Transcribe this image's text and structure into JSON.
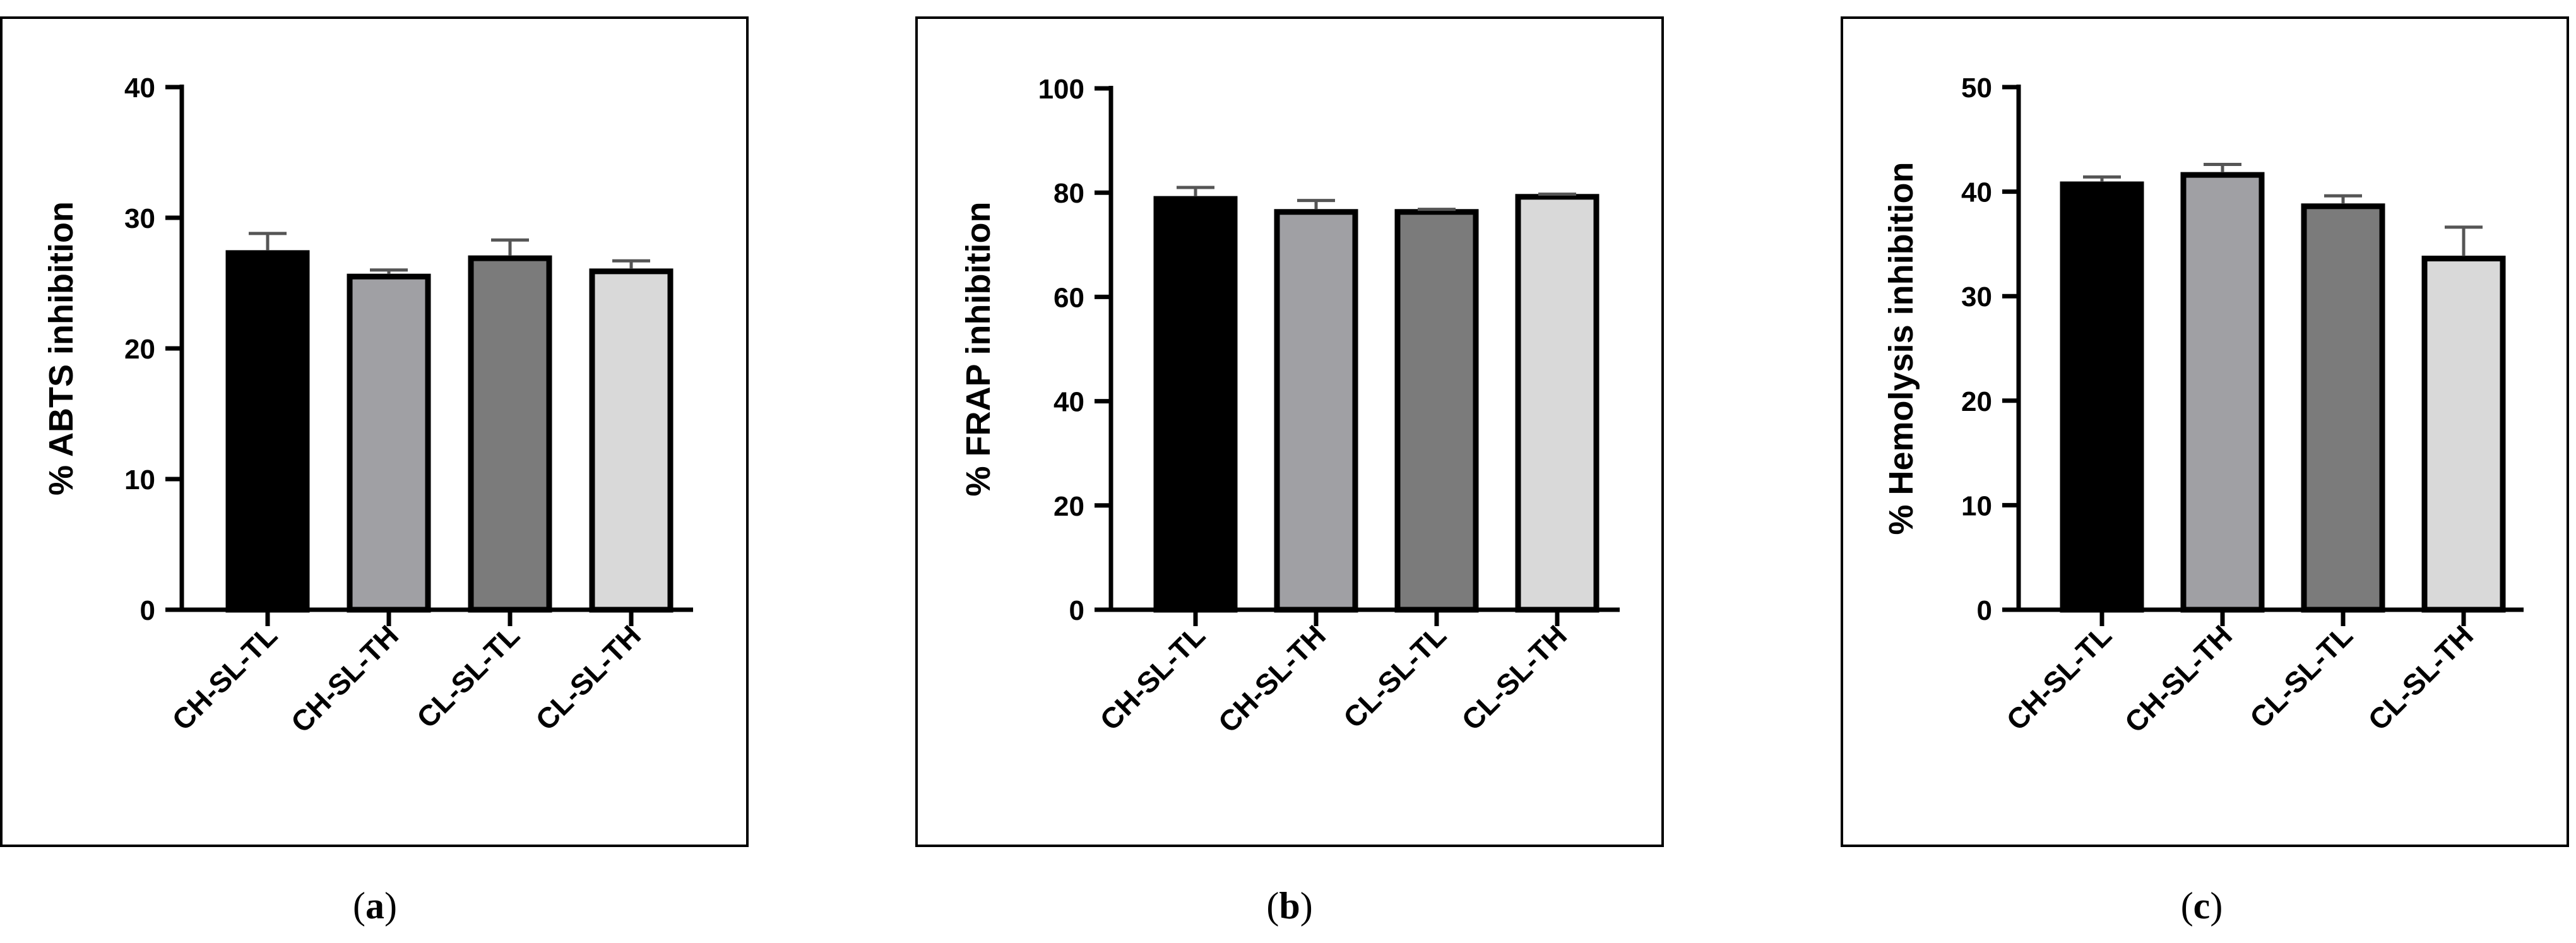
{
  "chart_data": [
    {
      "type": "bar",
      "caption": "(a)",
      "caption_letter": "a",
      "ylabel": "% ABTS inhibition",
      "ylim": [
        0,
        40
      ],
      "yticks": [
        0,
        10,
        20,
        30,
        40
      ],
      "categories": [
        "CH-SL-TL",
        "CH-SL-TH",
        "CL-SL-TL",
        "CL-SL-TH"
      ],
      "values": [
        27.3,
        25.5,
        26.9,
        25.9
      ],
      "errors": [
        1.5,
        0.5,
        1.4,
        0.8
      ],
      "colors": [
        "#000000",
        "#a0a0a4",
        "#7b7b7b",
        "#d9d9d9"
      ]
    },
    {
      "type": "bar",
      "caption": "(b)",
      "caption_letter": "b",
      "ylabel": "% FRAP inhibition",
      "ylim": [
        0,
        100
      ],
      "yticks": [
        0,
        20,
        40,
        60,
        80,
        100
      ],
      "categories": [
        "CH-SL-TL",
        "CH-SL-TH",
        "CL-SL-TL",
        "CL-SL-TH"
      ],
      "values": [
        78.8,
        76.3,
        76.3,
        79.2
      ],
      "errors": [
        2.2,
        2.2,
        0.5,
        0.5
      ],
      "colors": [
        "#000000",
        "#a0a0a4",
        "#7b7b7b",
        "#d9d9d9"
      ]
    },
    {
      "type": "bar",
      "caption": "(c)",
      "caption_letter": "c",
      "ylabel": "% Hemolysis inhibition",
      "ylim": [
        0,
        50
      ],
      "yticks": [
        0,
        10,
        20,
        30,
        40,
        50
      ],
      "categories": [
        "CH-SL-TL",
        "CH-SL-TH",
        "CL-SL-TL",
        "CL-SL-TH"
      ],
      "values": [
        40.7,
        41.6,
        38.6,
        33.6
      ],
      "errors": [
        0.7,
        1.0,
        1.0,
        3.0
      ],
      "colors": [
        "#000000",
        "#a0a0a4",
        "#7b7b7b",
        "#d9d9d9"
      ]
    }
  ]
}
